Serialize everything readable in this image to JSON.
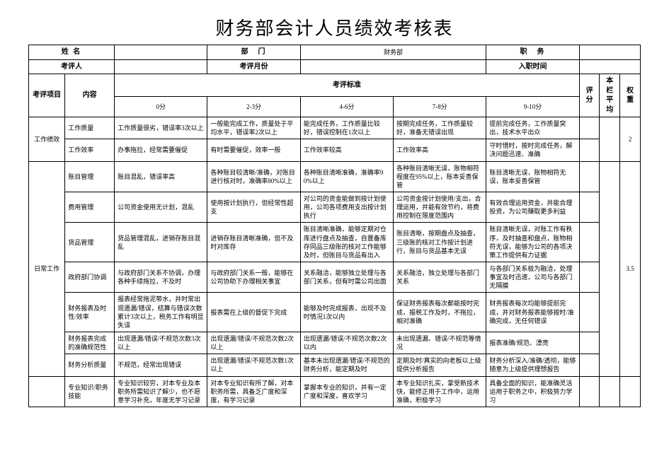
{
  "title": "财务部会计人员绩效考核表",
  "header_row1": {
    "name_label": "姓 名",
    "dept_label": "部　门",
    "dept_value": "财务部",
    "position_label": "职　务"
  },
  "header_row2": {
    "assessor_label": "考评人",
    "month_label": "考评月份",
    "hire_label": "入职时间"
  },
  "cols": {
    "project": "考评项目",
    "content": "内容",
    "criteria": "考评标准",
    "c0": "0分",
    "c23": "2-3分",
    "c46": "4-6分",
    "c78": "7-8分",
    "c910": "9-10分",
    "score": "评分",
    "avg": "本栏平均",
    "weight": "权重"
  },
  "groups": [
    {
      "name": "工作绩效",
      "weight": "2",
      "rows": [
        {
          "content": "工作质量",
          "c0": "工作质量很劣，错误率3次以上",
          "c23": "一般能完成工作，质量处于平均水平，错误率2次以上",
          "c46": "能完成任务，工作质量比较好，错误控制在1次以上",
          "c78": "按期完成任务，工作质量较好，准备无错误出现",
          "c910": "提前完成任务，工作质量突出，技术水平出众"
        },
        {
          "content": "工作效率",
          "c0": "办事拖拉，经常需要催促",
          "c23": "有时需要催促，效率一般",
          "c46": "工作效率较高",
          "c78": "工作效率高",
          "c910": "守时惜时，按时完成任务，解决问题迅速、准确"
        }
      ]
    },
    {
      "name": "日常工作",
      "weight": "3.5",
      "rows": [
        {
          "content": "账目管理",
          "c0": "账目混乱，错误率高",
          "c23": "各种账目较清晰/准确，对账目进行核对时，准确率80%以上",
          "c46": "各种账目清晰准确，准确率90%以上",
          "c78": "各种账目清晰无误，账物相符程度在95%以上，账本妥善保管",
          "c910": "账目清晰无误，账物相符无误，账本妥善保管"
        },
        {
          "content": "费用管理",
          "c0": "公司资金使用无计划，混乱",
          "c23": "使用按计划执行，但经常性超支",
          "c46": "对公司的资金能做到按计划使用，公司各项费用支出按计划执行",
          "c78": "公司资金按计划使用/支出，合理运用，并能有效节约，将费用控制在限度范围内",
          "c910": "有效合理运用资金，并能合理投资，为公司赚取更多利益"
        },
        {
          "content": "货品管理",
          "c0": "货品管理混乱，进销存账目混乱",
          "c23": "进销存账目清晰准确，但不及时对库存",
          "c46": "账目清晰准确，能够定期对仓库进行盘点及抽查，自置备库存同品三级账的核对工作能够及时，但账目与货品有出入",
          "c78": "账目清晰，按期盘点及抽查，三级账的核对工作按计划进行，账目与货品基本无误",
          "c910": "账目清晰无误，对账工作有秩序，及时抽查和盘点，账物相符无误，能够为公司的各项决策工作提供有力证据"
        },
        {
          "content": "政府部门协调",
          "c0": "与政府部门关系不协调，办理各种手续拖拉，不及时",
          "c23": "与政府部门关系一般，能够在公司协助下办理相关事宜",
          "c46": "关系融洽，能够独立处理与各部门关系，但有时需公司出面",
          "c78": "关系融洽，独立处理与各部门关系",
          "c910": "与各部门关系极为融洽，处理事宜及时迅速，公司与各部门无隔膜"
        },
        {
          "content": "财务报表及时性/效率",
          "c0": "报表经常拖泥带水，并时常出现遗漏/错误，结算与错误次数累计3次以上，税务工作有明显失误",
          "c23": "报表需在上级的督促下完成",
          "c46": "能够及时完成报表，出现不及时情况1次以内",
          "c78": "保证财务报表每次都能按时完成，报税工作及时，不拖拉，相对准确",
          "c910": "财务报表每次均能够提前完成，并对财务报表能够按时/准确完成，无任何错误"
        },
        {
          "content": "财务报表完成的准确规范性",
          "c0": "出现遗漏/错误/不规范次数3次以上",
          "c23": "出现遗漏/错误/不规范次数2次以上",
          "c46": "出现遗漏/错误/不规范次数2次以内",
          "c78": "未出现遗漏、错误/不规范等情况",
          "c910": "报表准确/规范、漂亮"
        },
        {
          "content": "财务分析质量",
          "c0": "不规范，经常出现错误",
          "c23": "出现遗漏/错误/不规范次数1次以上",
          "c46": "基本未出现遗漏/错误/不规范的财务分析，能定期及时",
          "c78": "定期及时/真实的向老板以上级提供分析报告",
          "c910": "财务分析深入/准确/透彻，能够随意为上级提供理想报告"
        }
      ]
    },
    {
      "name": "",
      "weight": "",
      "rows": [
        {
          "content": "专业知识/职务技能",
          "c0": "专业知识较穷，对本专业及本职务所需知识了解少，也不愿意学习补充，年度无学习记录",
          "c23": "对本专业知识有所了解，对本职务所需，具备乏广度和深度，有学习记录",
          "c46": "掌握本专业的知识，并有一定广度和深度，喜欢学习",
          "c78": "本专业知识扎实，掌受新技术快，能修正用于工作中，运用准确，积极学习",
          "c910": "具备全面的知识，能准确灵活运用于职务之中，积极努力学习"
        }
      ]
    }
  ]
}
